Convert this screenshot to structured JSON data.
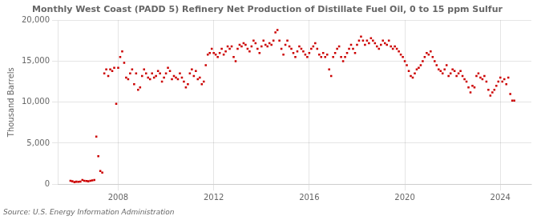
{
  "chart_data": {
    "type": "scatter",
    "title": "Monthly West Coast (PADD 5) Refinery Net Production of Distillate Fuel Oil, 0 to 15 ppm Sulfur",
    "ylabel": "Thousand Barrels",
    "annotations": [
      "Source: U.S. Energy Information Administration"
    ],
    "color": "#cc0000",
    "marker": "square",
    "grid": true,
    "xlim": [
      2005.5,
      2025.3
    ],
    "xticks": [
      2008,
      2012,
      2016,
      2020,
      2024
    ],
    "ylim": [
      0,
      20000
    ],
    "yticks": [
      0,
      {
        "value": 5000,
        "label": "5,000"
      },
      {
        "value": 10000,
        "label": "10,000"
      },
      {
        "value": 15000,
        "label": "15,000"
      },
      {
        "value": 20000,
        "label": "20,000"
      }
    ],
    "x": [
      2006.0,
      2006.083,
      2006.167,
      2006.25,
      2006.333,
      2006.417,
      2006.5,
      2006.583,
      2006.667,
      2006.75,
      2006.833,
      2006.917,
      2007.0,
      2007.083,
      2007.167,
      2007.25,
      2007.333,
      2007.417,
      2007.5,
      2007.583,
      2007.667,
      2007.75,
      2007.833,
      2007.917,
      2008.0,
      2008.083,
      2008.167,
      2008.25,
      2008.333,
      2008.417,
      2008.5,
      2008.583,
      2008.667,
      2008.75,
      2008.833,
      2008.917,
      2009.0,
      2009.083,
      2009.167,
      2009.25,
      2009.333,
      2009.417,
      2009.5,
      2009.583,
      2009.667,
      2009.75,
      2009.833,
      2009.917,
      2010.0,
      2010.083,
      2010.167,
      2010.25,
      2010.333,
      2010.417,
      2010.5,
      2010.583,
      2010.667,
      2010.75,
      2010.833,
      2010.917,
      2011.0,
      2011.083,
      2011.167,
      2011.25,
      2011.333,
      2011.417,
      2011.5,
      2011.583,
      2011.667,
      2011.75,
      2011.833,
      2011.917,
      2012.0,
      2012.083,
      2012.167,
      2012.25,
      2012.333,
      2012.417,
      2012.5,
      2012.583,
      2012.667,
      2012.75,
      2012.833,
      2012.917,
      2013.0,
      2013.083,
      2013.167,
      2013.25,
      2013.333,
      2013.417,
      2013.5,
      2013.583,
      2013.667,
      2013.75,
      2013.833,
      2013.917,
      2014.0,
      2014.083,
      2014.167,
      2014.25,
      2014.333,
      2014.417,
      2014.5,
      2014.583,
      2014.667,
      2014.75,
      2014.833,
      2014.917,
      2015.0,
      2015.083,
      2015.167,
      2015.25,
      2015.333,
      2015.417,
      2015.5,
      2015.583,
      2015.667,
      2015.75,
      2015.833,
      2015.917,
      2016.0,
      2016.083,
      2016.167,
      2016.25,
      2016.333,
      2016.417,
      2016.5,
      2016.583,
      2016.667,
      2016.75,
      2016.833,
      2016.917,
      2017.0,
      2017.083,
      2017.167,
      2017.25,
      2017.333,
      2017.417,
      2017.5,
      2017.583,
      2017.667,
      2017.75,
      2017.833,
      2017.917,
      2018.0,
      2018.083,
      2018.167,
      2018.25,
      2018.333,
      2018.417,
      2018.5,
      2018.583,
      2018.667,
      2018.75,
      2018.833,
      2018.917,
      2019.0,
      2019.083,
      2019.167,
      2019.25,
      2019.333,
      2019.417,
      2019.5,
      2019.583,
      2019.667,
      2019.75,
      2019.833,
      2019.917,
      2020.0,
      2020.083,
      2020.167,
      2020.25,
      2020.333,
      2020.417,
      2020.5,
      2020.583,
      2020.667,
      2020.75,
      2020.833,
      2020.917,
      2021.0,
      2021.083,
      2021.167,
      2021.25,
      2021.333,
      2021.417,
      2021.5,
      2021.583,
      2021.667,
      2021.75,
      2021.833,
      2021.917,
      2022.0,
      2022.083,
      2022.167,
      2022.25,
      2022.333,
      2022.417,
      2022.5,
      2022.583,
      2022.667,
      2022.75,
      2022.833,
      2022.917,
      2023.0,
      2023.083,
      2023.167,
      2023.25,
      2023.333,
      2023.417,
      2023.5,
      2023.583,
      2023.667,
      2023.75,
      2023.833,
      2023.917,
      2024.0,
      2024.083,
      2024.167,
      2024.25,
      2024.333,
      2024.417,
      2024.5,
      2024.583
    ],
    "values": [
      400,
      350,
      250,
      300,
      280,
      320,
      500,
      400,
      380,
      350,
      400,
      450,
      500,
      5800,
      3400,
      1600,
      1400,
      13500,
      14000,
      13200,
      14000,
      13800,
      14200,
      9800,
      14200,
      15500,
      16200,
      14800,
      13000,
      12800,
      13500,
      14000,
      12200,
      13500,
      11500,
      11800,
      13200,
      14000,
      13500,
      13000,
      12800,
      13500,
      13000,
      13200,
      13800,
      13500,
      12500,
      13000,
      13500,
      14200,
      13800,
      12800,
      13200,
      13000,
      12800,
      13500,
      13000,
      12500,
      11800,
      12200,
      13500,
      14000,
      13200,
      13800,
      12800,
      13000,
      12200,
      12500,
      14500,
      15800,
      16000,
      16500,
      16000,
      15800,
      15500,
      16000,
      16500,
      15800,
      16200,
      16800,
      16500,
      16800,
      15500,
      15000,
      16500,
      17000,
      16800,
      17200,
      17000,
      16500,
      16200,
      16800,
      17500,
      17200,
      16500,
      16000,
      16800,
      17500,
      17000,
      16800,
      17200,
      17000,
      17500,
      18500,
      18800,
      17500,
      16500,
      15800,
      17000,
      17500,
      16800,
      16500,
      16000,
      15500,
      16200,
      16800,
      16500,
      16200,
      15800,
      15500,
      16000,
      16500,
      16800,
      17200,
      16500,
      15800,
      15500,
      16000,
      15500,
      15800,
      14000,
      13200,
      15500,
      16000,
      16500,
      16800,
      15500,
      15000,
      15500,
      16000,
      16500,
      17000,
      16500,
      16000,
      17000,
      17500,
      18000,
      17500,
      17000,
      17500,
      17200,
      17800,
      17500,
      17200,
      16800,
      16500,
      17000,
      17500,
      17200,
      17000,
      17500,
      16800,
      16500,
      16800,
      16500,
      16200,
      15800,
      15500,
      15000,
      14500,
      13800,
      13200,
      13000,
      13500,
      14000,
      14200,
      14500,
      15000,
      15500,
      16000,
      15800,
      16200,
      15500,
      15000,
      14500,
      14000,
      13800,
      13500,
      14000,
      14500,
      13200,
      13500,
      14000,
      13800,
      13200,
      13500,
      13800,
      13200,
      12800,
      12500,
      11800,
      11200,
      12000,
      11800,
      13200,
      13500,
      13000,
      12800,
      13200,
      12500,
      11500,
      10800,
      11200,
      11500,
      12000,
      12500,
      13000,
      12500,
      12800,
      12200,
      13000,
      11000,
      10200,
      10200
    ]
  }
}
